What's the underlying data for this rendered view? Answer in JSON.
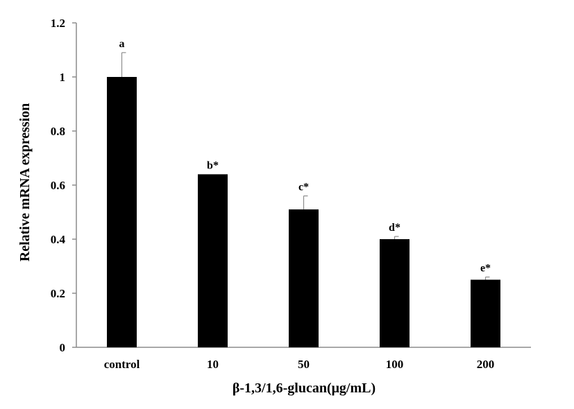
{
  "chart_data": {
    "type": "bar",
    "categories": [
      "control",
      "10",
      "50",
      "100",
      "200"
    ],
    "values": [
      1.0,
      0.64,
      0.51,
      0.4,
      0.25
    ],
    "errors": [
      0.09,
      0.0,
      0.05,
      0.01,
      0.01
    ],
    "annotations": [
      "a",
      "b*",
      "c*",
      "d*",
      "e*"
    ],
    "xlabel": "β-1,3/1,6-glucan(μg/mL)",
    "ylabel": "Relative mRNA expression",
    "ylim": [
      0,
      1.2
    ],
    "yticks": [
      "0",
      "0.2",
      "0.4",
      "0.6",
      "0.8",
      "1",
      "1.2"
    ],
    "grid": false,
    "colors": {
      "bar": "#000000",
      "axis": "#8c8c8c",
      "error": "#8c8c8c",
      "text": "#000000"
    }
  }
}
